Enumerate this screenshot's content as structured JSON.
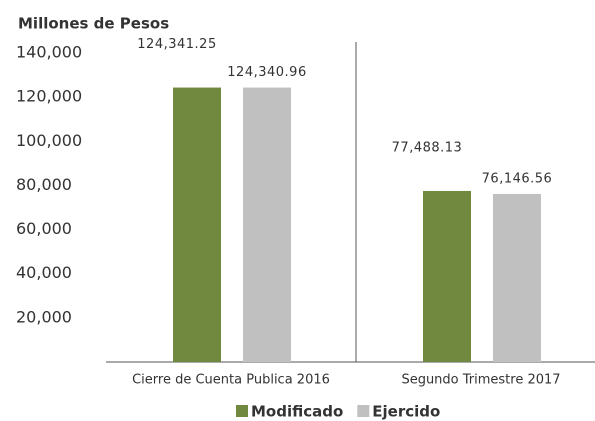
{
  "chart_data": {
    "type": "bar",
    "ylabel": "Millones de Pesos",
    "categories": [
      "Cierre de Cuenta Publica 2016",
      "Segundo Trimestre 2017"
    ],
    "series": [
      {
        "name": "Modificado",
        "color": "#71893f",
        "values": [
          124341.25,
          77488.13
        ],
        "value_labels": [
          "124,341.25",
          "77,488.13"
        ]
      },
      {
        "name": "Ejercido",
        "color": "#c0c0c0",
        "values": [
          124340.96,
          76146.56
        ],
        "value_labels": [
          "124,340.96",
          "76,146.56"
        ]
      }
    ],
    "ylim": [
      0,
      140000
    ],
    "yticks": [
      {
        "value": 20000,
        "label": "20,000"
      },
      {
        "value": 40000,
        "label": "40,000"
      },
      {
        "value": 60000,
        "label": "60,000"
      },
      {
        "value": 80000,
        "label": "80,000"
      },
      {
        "value": 100000,
        "label": "100,000"
      },
      {
        "value": 120000,
        "label": "120,000"
      },
      {
        "value": 140000,
        "label": "140,000"
      }
    ],
    "legend": "bottom"
  }
}
